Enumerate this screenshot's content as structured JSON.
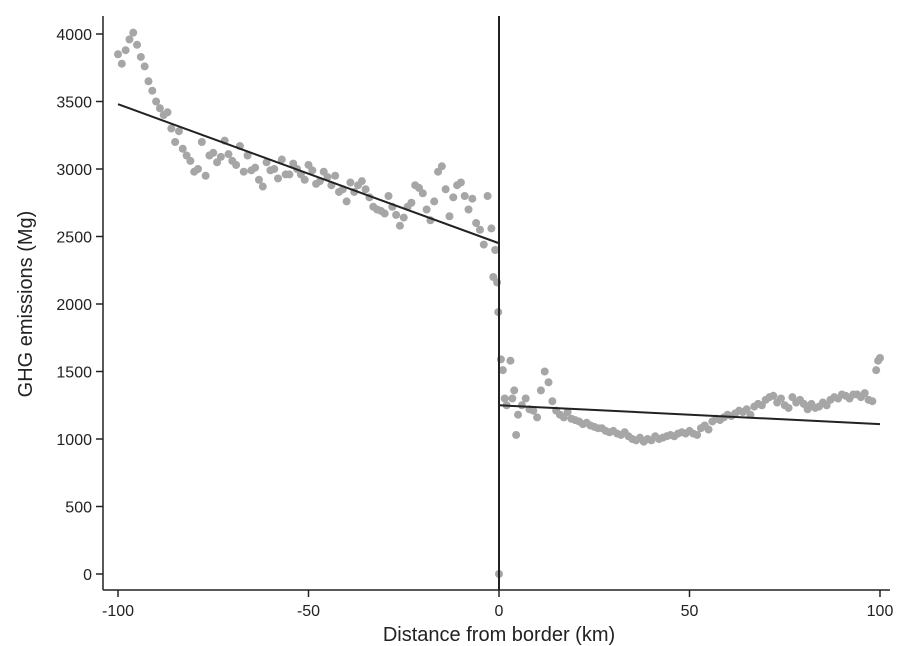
{
  "chart_data": {
    "type": "scatter",
    "title": "",
    "xlabel": "Distance from border (km)",
    "ylabel": "GHG emissions (Mg)",
    "xlim": [
      -100,
      100
    ],
    "ylim": [
      0,
      4000
    ],
    "xticks": [
      -100,
      -50,
      0,
      50,
      100
    ],
    "xtick_labels": [
      "-100",
      "-50",
      "0",
      "50",
      "100"
    ],
    "yticks": [
      0,
      500,
      1000,
      1500,
      2000,
      2500,
      3000,
      3500,
      4000
    ],
    "ytick_labels": [
      "0",
      "500",
      "1000",
      "1500",
      "2000",
      "2500",
      "3000",
      "3500",
      "4000"
    ],
    "grid": false,
    "legend": "none",
    "cutoff_x": 0,
    "colors": {
      "points": "#a6a6a6",
      "lines": "#222222",
      "axis": "#222222"
    },
    "series": [
      {
        "kind": "scatter",
        "points": [
          [
            -100,
            3850
          ],
          [
            -99,
            3780
          ],
          [
            -98,
            3880
          ],
          [
            -97,
            3960
          ],
          [
            -96,
            4010
          ],
          [
            -95,
            3920
          ],
          [
            -94,
            3830
          ],
          [
            -93,
            3760
          ],
          [
            -92,
            3650
          ],
          [
            -91,
            3580
          ],
          [
            -90,
            3500
          ],
          [
            -89,
            3450
          ],
          [
            -88,
            3400
          ],
          [
            -87,
            3420
          ],
          [
            -86,
            3300
          ],
          [
            -85,
            3200
          ],
          [
            -84,
            3280
          ],
          [
            -83,
            3150
          ],
          [
            -82,
            3100
          ],
          [
            -81,
            3060
          ],
          [
            -80,
            2980
          ],
          [
            -79,
            3000
          ],
          [
            -78,
            3200
          ],
          [
            -77,
            2950
          ],
          [
            -76,
            3100
          ],
          [
            -75,
            3120
          ],
          [
            -74,
            3050
          ],
          [
            -73,
            3090
          ],
          [
            -72,
            3210
          ],
          [
            -71,
            3110
          ],
          [
            -70,
            3060
          ],
          [
            -69,
            3030
          ],
          [
            -68,
            3170
          ],
          [
            -67,
            2980
          ],
          [
            -66,
            3100
          ],
          [
            -65,
            2990
          ],
          [
            -64,
            3010
          ],
          [
            -63,
            2920
          ],
          [
            -62,
            2870
          ],
          [
            -61,
            3050
          ],
          [
            -60,
            2990
          ],
          [
            -59,
            3000
          ],
          [
            -58,
            2930
          ],
          [
            -57,
            3070
          ],
          [
            -56,
            2960
          ],
          [
            -55,
            2960
          ],
          [
            -54,
            3040
          ],
          [
            -53,
            3000
          ],
          [
            -52,
            2960
          ],
          [
            -51,
            2920
          ],
          [
            -50,
            3030
          ],
          [
            -49,
            2990
          ],
          [
            -48,
            2890
          ],
          [
            -47,
            2910
          ],
          [
            -46,
            2980
          ],
          [
            -45,
            2940
          ],
          [
            -44,
            2880
          ],
          [
            -43,
            2950
          ],
          [
            -42,
            2830
          ],
          [
            -41,
            2850
          ],
          [
            -40,
            2760
          ],
          [
            -39,
            2900
          ],
          [
            -38,
            2830
          ],
          [
            -37,
            2880
          ],
          [
            -36,
            2910
          ],
          [
            -35,
            2850
          ],
          [
            -34,
            2790
          ],
          [
            -33,
            2720
          ],
          [
            -32,
            2700
          ],
          [
            -31,
            2690
          ],
          [
            -30,
            2670
          ],
          [
            -29,
            2800
          ],
          [
            -28,
            2720
          ],
          [
            -27,
            2660
          ],
          [
            -26,
            2580
          ],
          [
            -25,
            2640
          ],
          [
            -24,
            2720
          ],
          [
            -23,
            2750
          ],
          [
            -22,
            2880
          ],
          [
            -21,
            2860
          ],
          [
            -20,
            2820
          ],
          [
            -19,
            2700
          ],
          [
            -18,
            2620
          ],
          [
            -17,
            2760
          ],
          [
            -16,
            2980
          ],
          [
            -15,
            3020
          ],
          [
            -14,
            2850
          ],
          [
            -13,
            2650
          ],
          [
            -12,
            2790
          ],
          [
            -11,
            2880
          ],
          [
            -10,
            2900
          ],
          [
            -9,
            2800
          ],
          [
            -8,
            2700
          ],
          [
            -7,
            2780
          ],
          [
            -6,
            2600
          ],
          [
            -5,
            2550
          ],
          [
            -4,
            2440
          ],
          [
            -3,
            2800
          ],
          [
            -2,
            2560
          ],
          [
            -1.5,
            2200
          ],
          [
            -1,
            2400
          ],
          [
            -0.5,
            2160
          ],
          [
            -0.2,
            1940
          ],
          [
            0,
            0
          ],
          [
            0.5,
            1590
          ],
          [
            1,
            1510
          ],
          [
            1.5,
            1300
          ],
          [
            2,
            1250
          ],
          [
            3,
            1580
          ],
          [
            3.5,
            1300
          ],
          [
            4,
            1360
          ],
          [
            4.5,
            1030
          ],
          [
            5,
            1180
          ],
          [
            6,
            1250
          ],
          [
            7,
            1300
          ],
          [
            8,
            1220
          ],
          [
            9,
            1210
          ],
          [
            10,
            1160
          ],
          [
            11,
            1360
          ],
          [
            12,
            1500
          ],
          [
            13,
            1420
          ],
          [
            14,
            1280
          ],
          [
            15,
            1210
          ],
          [
            16,
            1180
          ],
          [
            17,
            1160
          ],
          [
            18,
            1200
          ],
          [
            19,
            1150
          ],
          [
            20,
            1140
          ],
          [
            21,
            1130
          ],
          [
            22,
            1110
          ],
          [
            23,
            1120
          ],
          [
            24,
            1100
          ],
          [
            25,
            1090
          ],
          [
            26,
            1080
          ],
          [
            27,
            1080
          ],
          [
            28,
            1060
          ],
          [
            29,
            1050
          ],
          [
            30,
            1060
          ],
          [
            31,
            1040
          ],
          [
            32,
            1030
          ],
          [
            33,
            1050
          ],
          [
            34,
            1020
          ],
          [
            35,
            1000
          ],
          [
            36,
            990
          ],
          [
            37,
            1010
          ],
          [
            38,
            980
          ],
          [
            39,
            1000
          ],
          [
            40,
            990
          ],
          [
            41,
            1020
          ],
          [
            42,
            1000
          ],
          [
            43,
            1010
          ],
          [
            44,
            1020
          ],
          [
            45,
            1030
          ],
          [
            46,
            1020
          ],
          [
            47,
            1040
          ],
          [
            48,
            1050
          ],
          [
            49,
            1040
          ],
          [
            50,
            1060
          ],
          [
            51,
            1040
          ],
          [
            52,
            1030
          ],
          [
            53,
            1080
          ],
          [
            54,
            1100
          ],
          [
            55,
            1070
          ],
          [
            56,
            1130
          ],
          [
            57,
            1150
          ],
          [
            58,
            1140
          ],
          [
            59,
            1160
          ],
          [
            60,
            1180
          ],
          [
            61,
            1170
          ],
          [
            62,
            1190
          ],
          [
            63,
            1210
          ],
          [
            64,
            1200
          ],
          [
            65,
            1220
          ],
          [
            66,
            1180
          ],
          [
            67,
            1240
          ],
          [
            68,
            1260
          ],
          [
            69,
            1250
          ],
          [
            70,
            1290
          ],
          [
            71,
            1310
          ],
          [
            72,
            1320
          ],
          [
            73,
            1270
          ],
          [
            74,
            1300
          ],
          [
            75,
            1250
          ],
          [
            76,
            1230
          ],
          [
            77,
            1310
          ],
          [
            78,
            1270
          ],
          [
            79,
            1290
          ],
          [
            80,
            1260
          ],
          [
            81,
            1220
          ],
          [
            82,
            1260
          ],
          [
            83,
            1230
          ],
          [
            84,
            1240
          ],
          [
            85,
            1270
          ],
          [
            86,
            1250
          ],
          [
            87,
            1290
          ],
          [
            88,
            1310
          ],
          [
            89,
            1300
          ],
          [
            90,
            1330
          ],
          [
            91,
            1320
          ],
          [
            92,
            1300
          ],
          [
            93,
            1330
          ],
          [
            94,
            1330
          ],
          [
            95,
            1310
          ],
          [
            96,
            1340
          ],
          [
            97,
            1290
          ],
          [
            98,
            1280
          ],
          [
            99,
            1510
          ],
          [
            99.5,
            1580
          ],
          [
            100,
            1600
          ]
        ]
      },
      {
        "kind": "line",
        "segment": "left",
        "x": [
          -100,
          0
        ],
        "y": [
          3480,
          2450
        ]
      },
      {
        "kind": "line",
        "segment": "right",
        "x": [
          0,
          100
        ],
        "y": [
          1250,
          1110
        ]
      }
    ]
  }
}
